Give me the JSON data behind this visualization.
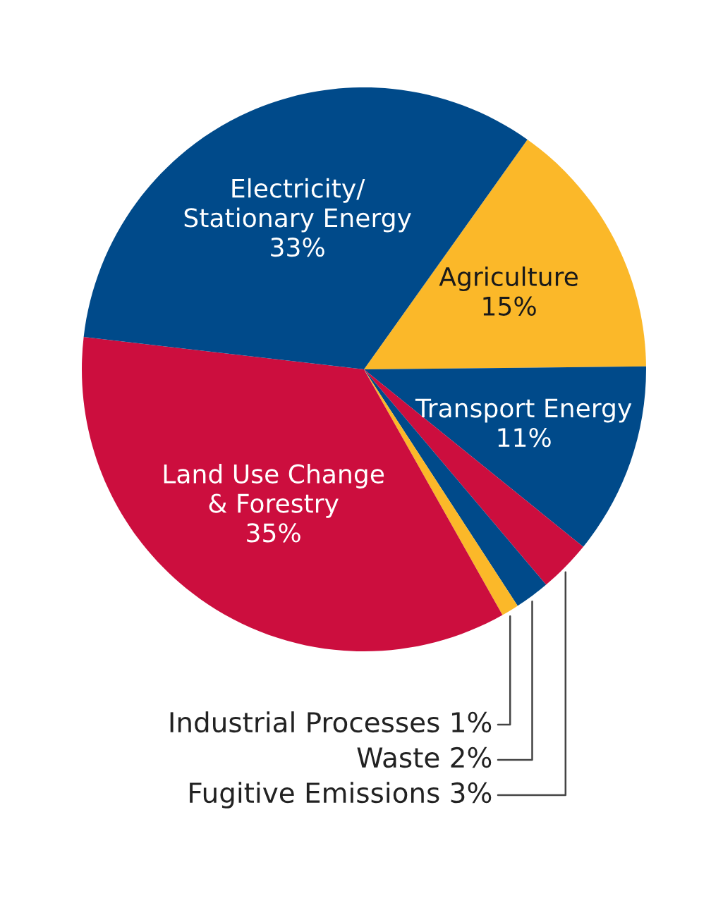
{
  "chart_data": {
    "type": "pie",
    "categories": [
      "Agriculture",
      "Transport Energy",
      "Fugitive Emissions",
      "Waste",
      "Industrial Processes",
      "Land Use Change\n& Forestry",
      "Electricity/\nStationary Energy"
    ],
    "values": [
      15,
      11,
      3,
      2,
      1,
      35,
      33
    ],
    "colors": [
      "#fbb829",
      "#004a8a",
      "#cc0e3e",
      "#004a8a",
      "#fbb829",
      "#cc0e3e",
      "#004a8a"
    ],
    "value_labels": [
      "15%",
      "11%",
      "3%",
      "2%",
      "1%",
      "35%",
      "33%"
    ],
    "legend": false
  }
}
